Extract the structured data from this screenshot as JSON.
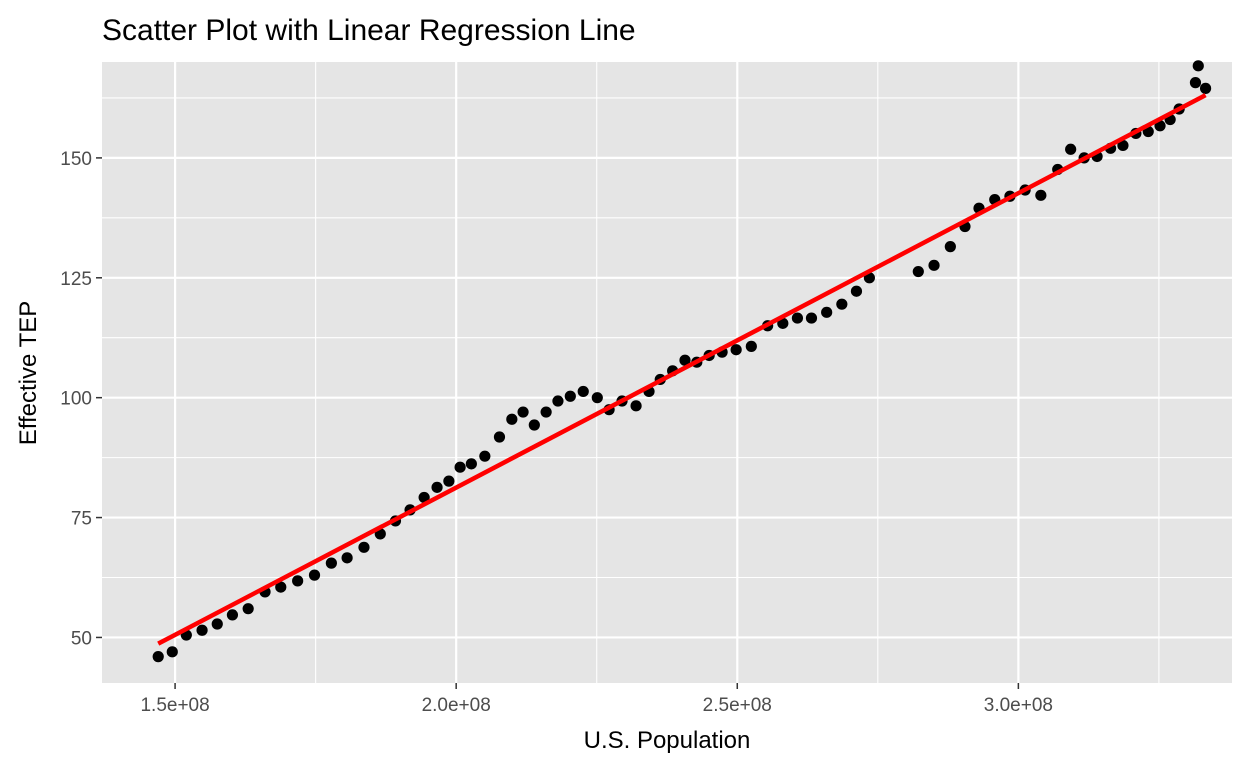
{
  "chart_data": {
    "type": "scatter",
    "title": "Scatter Plot with Linear Regression Line",
    "xlabel": "U.S. Population",
    "ylabel": "Effective TEP",
    "xlim": [
      137000000,
      338000000
    ],
    "ylim": [
      40.5,
      170
    ],
    "x_ticks": [
      150000000,
      200000000,
      250000000,
      300000000
    ],
    "x_tick_labels": [
      "1.5e+08",
      "2.0e+08",
      "2.5e+08",
      "3.0e+08"
    ],
    "y_ticks": [
      50,
      75,
      100,
      125,
      150
    ],
    "y_tick_labels": [
      "50",
      "75",
      "100",
      "125",
      "150"
    ],
    "grid": true,
    "colors": {
      "panel": "#e5e5e5",
      "grid": "#ffffff",
      "points": "#000000",
      "regression": "#ff0000",
      "ticks": "#333333"
    },
    "series": [
      {
        "type": "scatter",
        "x": [
          147000000,
          149500000,
          152000000,
          154800000,
          157500000,
          160200000,
          163000000,
          166000000,
          168800000,
          171800000,
          174800000,
          177800000,
          180600000,
          183600000,
          186500000,
          189200000,
          191800000,
          194300000,
          196600000,
          198700000,
          200700000,
          202700000,
          205100000,
          207700000,
          209900000,
          211900000,
          213900000,
          216000000,
          218100000,
          220300000,
          222600000,
          225100000,
          227200000,
          229500000,
          232000000,
          234300000,
          236300000,
          238500000,
          240700000,
          242800000,
          245000000,
          247300000,
          249800000,
          252500000,
          255400000,
          258100000,
          260700000,
          263200000,
          265900000,
          268600000,
          271200000,
          273500000,
          282200000,
          285000000,
          287900000,
          290500000,
          293000000,
          295800000,
          298500000,
          301200000,
          304000000,
          307000000,
          309300000,
          311700000,
          314000000,
          316400000,
          318600000,
          320900000,
          323100000,
          325200000,
          327000000,
          328600000,
          331500000,
          332000000,
          333300000
        ],
        "y": [
          46,
          47,
          50.5,
          51.5,
          52.8,
          54.7,
          56,
          59.5,
          60.5,
          61.8,
          63,
          65.5,
          66.6,
          68.8,
          71.6,
          74.3,
          76.6,
          79.2,
          81.3,
          82.6,
          85.5,
          86.2,
          87.8,
          91.8,
          95.5,
          97,
          94.3,
          97,
          99.3,
          100.3,
          101.3,
          100,
          97.5,
          99.3,
          98.3,
          101.3,
          103.8,
          105.6,
          107.8,
          107.4,
          108.8,
          109.5,
          110,
          110.7,
          115,
          115.5,
          116.6,
          116.6,
          117.8,
          119.5,
          122.2,
          125,
          126.3,
          127.6,
          131.5,
          135.7,
          139.5,
          141.3,
          142,
          143.3,
          142.2,
          147.6,
          151.8,
          150,
          150.3,
          152,
          152.6,
          155.1,
          155.5,
          156.7,
          158,
          160.2,
          165.7,
          169.2,
          164.5
        ]
      },
      {
        "type": "line",
        "x": [
          147000000,
          333300000
        ],
        "y": [
          48.7,
          163.1
        ]
      }
    ]
  }
}
